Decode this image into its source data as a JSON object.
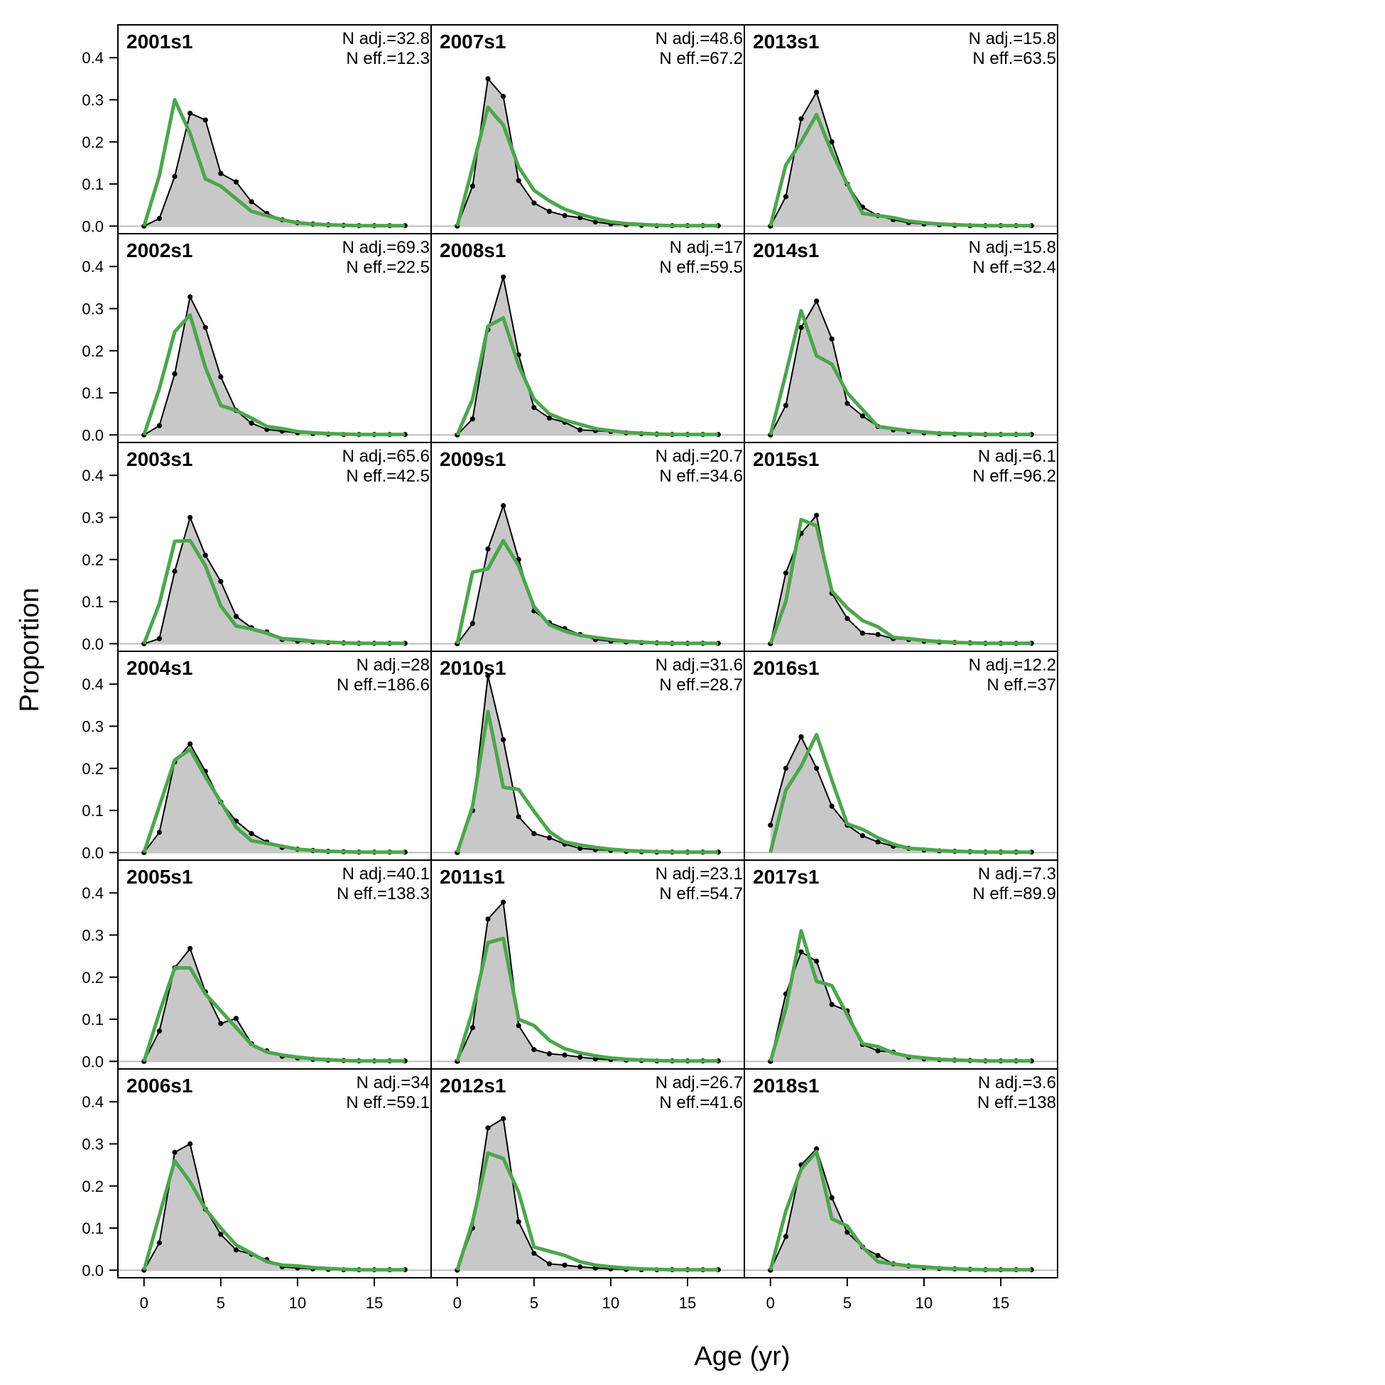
{
  "chart_data": {
    "type": "line",
    "title": "",
    "xlabel": "Age (yr)",
    "ylabel": "Proportion",
    "xlim": [
      -1.7,
      18.7
    ],
    "ylim": [
      -0.018,
      0.478
    ],
    "x_ticks": [
      0,
      5,
      10,
      15
    ],
    "y_ticks": [
      0.0,
      0.1,
      0.2,
      0.3,
      0.4
    ],
    "y_tick_labels": [
      "0.0",
      "0.1",
      "0.2",
      "0.3",
      "0.4"
    ],
    "ages": [
      0,
      1,
      2,
      3,
      4,
      5,
      6,
      7,
      8,
      9,
      10,
      11,
      12,
      13,
      14,
      15,
      16,
      17
    ],
    "series_styles": {
      "observed": {
        "line": "#000000",
        "fill": "#c8c8c8"
      },
      "expected": {
        "line": "#4ca64c"
      }
    },
    "grid": false,
    "layout": {
      "rows": 6,
      "cols": 3
    },
    "panels": [
      {
        "label": "2001s1",
        "n_adj": "N adj.=32.8",
        "n_eff": "N eff.=12.3",
        "observed": [
          0,
          0.018,
          0.118,
          0.268,
          0.252,
          0.125,
          0.105,
          0.058,
          0.03,
          0.015,
          0.008,
          0.005,
          0.003,
          0.002,
          0.001,
          0.001,
          0.001,
          0.001
        ],
        "expected": [
          0,
          0.12,
          0.3,
          0.22,
          0.112,
          0.095,
          0.065,
          0.035,
          0.025,
          0.015,
          0.008,
          0.005,
          0.003,
          0.002,
          0.001,
          0.001,
          0.001,
          0.001
        ]
      },
      {
        "label": "2002s1",
        "n_adj": "N adj.=69.3",
        "n_eff": "N eff.=22.5",
        "observed": [
          0,
          0.022,
          0.145,
          0.328,
          0.255,
          0.138,
          0.058,
          0.028,
          0.013,
          0.009,
          0.005,
          0.003,
          0.002,
          0.001,
          0.001,
          0.001,
          0.001,
          0.001
        ],
        "expected": [
          0,
          0.11,
          0.245,
          0.285,
          0.16,
          0.07,
          0.058,
          0.04,
          0.02,
          0.015,
          0.008,
          0.005,
          0.003,
          0.002,
          0.001,
          0.001,
          0.001,
          0.001
        ]
      },
      {
        "label": "2003s1",
        "n_adj": "N adj.=65.6",
        "n_eff": "N eff.=42.5",
        "observed": [
          0,
          0.012,
          0.172,
          0.3,
          0.21,
          0.148,
          0.065,
          0.038,
          0.028,
          0.01,
          0.006,
          0.004,
          0.003,
          0.002,
          0.001,
          0.001,
          0.001,
          0.001
        ],
        "expected": [
          0,
          0.095,
          0.243,
          0.245,
          0.185,
          0.09,
          0.042,
          0.035,
          0.025,
          0.012,
          0.01,
          0.006,
          0.004,
          0.002,
          0.001,
          0.001,
          0.001,
          0.001
        ]
      },
      {
        "label": "2004s1",
        "n_adj": "N adj.=28",
        "n_eff": "N eff.=186.6",
        "observed": [
          0,
          0.048,
          0.215,
          0.258,
          0.193,
          0.12,
          0.075,
          0.045,
          0.025,
          0.012,
          0.008,
          0.005,
          0.003,
          0.002,
          0.001,
          0.001,
          0.001,
          0.001
        ],
        "expected": [
          0,
          0.11,
          0.22,
          0.245,
          0.18,
          0.12,
          0.06,
          0.028,
          0.022,
          0.015,
          0.008,
          0.005,
          0.003,
          0.002,
          0.001,
          0.001,
          0.001,
          0.001
        ]
      },
      {
        "label": "2005s1",
        "n_adj": "N adj.=40.1",
        "n_eff": "N eff.=138.3",
        "observed": [
          0,
          0.072,
          0.222,
          0.268,
          0.165,
          0.09,
          0.102,
          0.042,
          0.025,
          0.012,
          0.008,
          0.005,
          0.003,
          0.002,
          0.001,
          0.001,
          0.001,
          0.001
        ],
        "expected": [
          0,
          0.115,
          0.222,
          0.222,
          0.16,
          0.12,
          0.08,
          0.04,
          0.022,
          0.015,
          0.01,
          0.006,
          0.004,
          0.002,
          0.001,
          0.001,
          0.001,
          0.001
        ]
      },
      {
        "label": "2006s1",
        "n_adj": "N adj.=34",
        "n_eff": "N eff.=59.1",
        "observed": [
          0,
          0.065,
          0.28,
          0.3,
          0.145,
          0.085,
          0.048,
          0.038,
          0.025,
          0.008,
          0.005,
          0.003,
          0.002,
          0.001,
          0.001,
          0.001,
          0.001,
          0.001
        ],
        "expected": [
          0,
          0.13,
          0.26,
          0.21,
          0.145,
          0.1,
          0.06,
          0.04,
          0.02,
          0.012,
          0.01,
          0.006,
          0.004,
          0.002,
          0.001,
          0.001,
          0.001,
          0.001
        ]
      },
      {
        "label": "2007s1",
        "n_adj": "N adj.=48.6",
        "n_eff": "N eff.=67.2",
        "observed": [
          0,
          0.095,
          0.35,
          0.308,
          0.108,
          0.055,
          0.035,
          0.025,
          0.02,
          0.01,
          0.005,
          0.003,
          0.002,
          0.001,
          0.001,
          0.001,
          0.001,
          0.001
        ],
        "expected": [
          0,
          0.14,
          0.282,
          0.24,
          0.14,
          0.085,
          0.06,
          0.04,
          0.028,
          0.018,
          0.01,
          0.006,
          0.004,
          0.002,
          0.001,
          0.001,
          0.001,
          0.001
        ]
      },
      {
        "label": "2008s1",
        "n_adj": "N adj.=17",
        "n_eff": "N eff.=59.5",
        "observed": [
          0,
          0.038,
          0.25,
          0.375,
          0.19,
          0.065,
          0.04,
          0.03,
          0.012,
          0.01,
          0.008,
          0.005,
          0.003,
          0.002,
          0.001,
          0.001,
          0.001,
          0.001
        ],
        "expected": [
          0,
          0.085,
          0.258,
          0.278,
          0.165,
          0.085,
          0.05,
          0.035,
          0.025,
          0.015,
          0.01,
          0.006,
          0.004,
          0.002,
          0.001,
          0.001,
          0.001,
          0.001
        ]
      },
      {
        "label": "2009s1",
        "n_adj": "N adj.=20.7",
        "n_eff": "N eff.=34.6",
        "observed": [
          0,
          0.048,
          0.225,
          0.328,
          0.2,
          0.078,
          0.05,
          0.036,
          0.022,
          0.01,
          0.006,
          0.004,
          0.003,
          0.002,
          0.001,
          0.001,
          0.001,
          0.001
        ],
        "expected": [
          0,
          0.17,
          0.178,
          0.245,
          0.185,
          0.088,
          0.045,
          0.03,
          0.02,
          0.015,
          0.01,
          0.006,
          0.004,
          0.002,
          0.001,
          0.001,
          0.001,
          0.001
        ]
      },
      {
        "label": "2010s1",
        "n_adj": "N adj.=31.6",
        "n_eff": "N eff.=28.7",
        "observed": [
          0,
          0.1,
          0.42,
          0.268,
          0.085,
          0.045,
          0.035,
          0.02,
          0.01,
          0.007,
          0.005,
          0.003,
          0.002,
          0.001,
          0.001,
          0.001,
          0.001,
          0.001
        ],
        "expected": [
          0,
          0.11,
          0.335,
          0.155,
          0.15,
          0.098,
          0.05,
          0.025,
          0.018,
          0.012,
          0.008,
          0.005,
          0.003,
          0.002,
          0.001,
          0.001,
          0.001,
          0.001
        ]
      },
      {
        "label": "2011s1",
        "n_adj": "N adj.=23.1",
        "n_eff": "N eff.=54.7",
        "observed": [
          0,
          0.08,
          0.338,
          0.378,
          0.085,
          0.028,
          0.018,
          0.015,
          0.01,
          0.006,
          0.004,
          0.003,
          0.002,
          0.001,
          0.001,
          0.001,
          0.001,
          0.001
        ],
        "expected": [
          0,
          0.12,
          0.282,
          0.292,
          0.1,
          0.085,
          0.05,
          0.03,
          0.02,
          0.013,
          0.008,
          0.005,
          0.003,
          0.002,
          0.001,
          0.001,
          0.001,
          0.001
        ]
      },
      {
        "label": "2012s1",
        "n_adj": "N adj.=26.7",
        "n_eff": "N eff.=41.6",
        "observed": [
          0,
          0.1,
          0.338,
          0.36,
          0.115,
          0.04,
          0.015,
          0.012,
          0.008,
          0.005,
          0.003,
          0.002,
          0.001,
          0.001,
          0.001,
          0.001,
          0.001,
          0.001
        ],
        "expected": [
          0,
          0.115,
          0.278,
          0.265,
          0.185,
          0.055,
          0.045,
          0.035,
          0.02,
          0.012,
          0.008,
          0.005,
          0.003,
          0.002,
          0.001,
          0.001,
          0.001,
          0.001
        ]
      },
      {
        "label": "2013s1",
        "n_adj": "N adj.=15.8",
        "n_eff": "N eff.=63.5",
        "observed": [
          0,
          0.07,
          0.255,
          0.318,
          0.2,
          0.1,
          0.045,
          0.025,
          0.015,
          0.008,
          0.005,
          0.003,
          0.002,
          0.001,
          0.001,
          0.001,
          0.001,
          0.001
        ],
        "expected": [
          0,
          0.145,
          0.2,
          0.265,
          0.175,
          0.1,
          0.03,
          0.025,
          0.02,
          0.012,
          0.008,
          0.005,
          0.003,
          0.002,
          0.001,
          0.001,
          0.001,
          0.001
        ]
      },
      {
        "label": "2014s1",
        "n_adj": "N adj.=15.8",
        "n_eff": "N eff.=32.4",
        "observed": [
          0,
          0.07,
          0.255,
          0.318,
          0.228,
          0.075,
          0.045,
          0.02,
          0.012,
          0.008,
          0.005,
          0.003,
          0.002,
          0.001,
          0.001,
          0.001,
          0.001,
          0.001
        ],
        "expected": [
          0,
          0.145,
          0.295,
          0.188,
          0.168,
          0.1,
          0.06,
          0.02,
          0.015,
          0.01,
          0.007,
          0.004,
          0.003,
          0.002,
          0.001,
          0.001,
          0.001,
          0.001
        ]
      },
      {
        "label": "2015s1",
        "n_adj": "N adj.=6.1",
        "n_eff": "N eff.=96.2",
        "observed": [
          0,
          0.168,
          0.262,
          0.305,
          0.12,
          0.06,
          0.025,
          0.022,
          0.012,
          0.01,
          0.006,
          0.004,
          0.003,
          0.002,
          0.001,
          0.001,
          0.001,
          0.001
        ],
        "expected": [
          0,
          0.1,
          0.295,
          0.28,
          0.125,
          0.085,
          0.055,
          0.04,
          0.015,
          0.012,
          0.008,
          0.005,
          0.003,
          0.002,
          0.001,
          0.001,
          0.001,
          0.001
        ]
      },
      {
        "label": "2016s1",
        "n_adj": "N adj.=12.2",
        "n_eff": "N eff.=37",
        "observed": [
          0.065,
          0.2,
          0.275,
          0.2,
          0.11,
          0.065,
          0.04,
          0.025,
          0.015,
          0.01,
          0.006,
          0.004,
          0.003,
          0.002,
          0.001,
          0.001,
          0.001,
          0.001
        ],
        "expected": [
          0,
          0.148,
          0.205,
          0.28,
          0.172,
          0.068,
          0.055,
          0.035,
          0.02,
          0.01,
          0.008,
          0.005,
          0.003,
          0.002,
          0.001,
          0.001,
          0.001,
          0.001
        ]
      },
      {
        "label": "2017s1",
        "n_adj": "N adj.=7.3",
        "n_eff": "N eff.=89.9",
        "observed": [
          0,
          0.16,
          0.26,
          0.238,
          0.135,
          0.12,
          0.04,
          0.025,
          0.022,
          0.01,
          0.006,
          0.004,
          0.003,
          0.002,
          0.001,
          0.001,
          0.001,
          0.001
        ],
        "expected": [
          0,
          0.125,
          0.31,
          0.19,
          0.18,
          0.11,
          0.042,
          0.035,
          0.02,
          0.012,
          0.008,
          0.005,
          0.003,
          0.002,
          0.001,
          0.001,
          0.001,
          0.001
        ]
      },
      {
        "label": "2018s1",
        "n_adj": "N adj.=3.6",
        "n_eff": "N eff.=138",
        "observed": [
          0,
          0.08,
          0.25,
          0.288,
          0.172,
          0.09,
          0.055,
          0.035,
          0.015,
          0.01,
          0.006,
          0.004,
          0.003,
          0.002,
          0.001,
          0.001,
          0.001,
          0.001
        ],
        "expected": [
          0,
          0.14,
          0.24,
          0.282,
          0.122,
          0.105,
          0.055,
          0.02,
          0.015,
          0.01,
          0.008,
          0.005,
          0.003,
          0.002,
          0.001,
          0.001,
          0.001,
          0.001
        ]
      }
    ]
  }
}
